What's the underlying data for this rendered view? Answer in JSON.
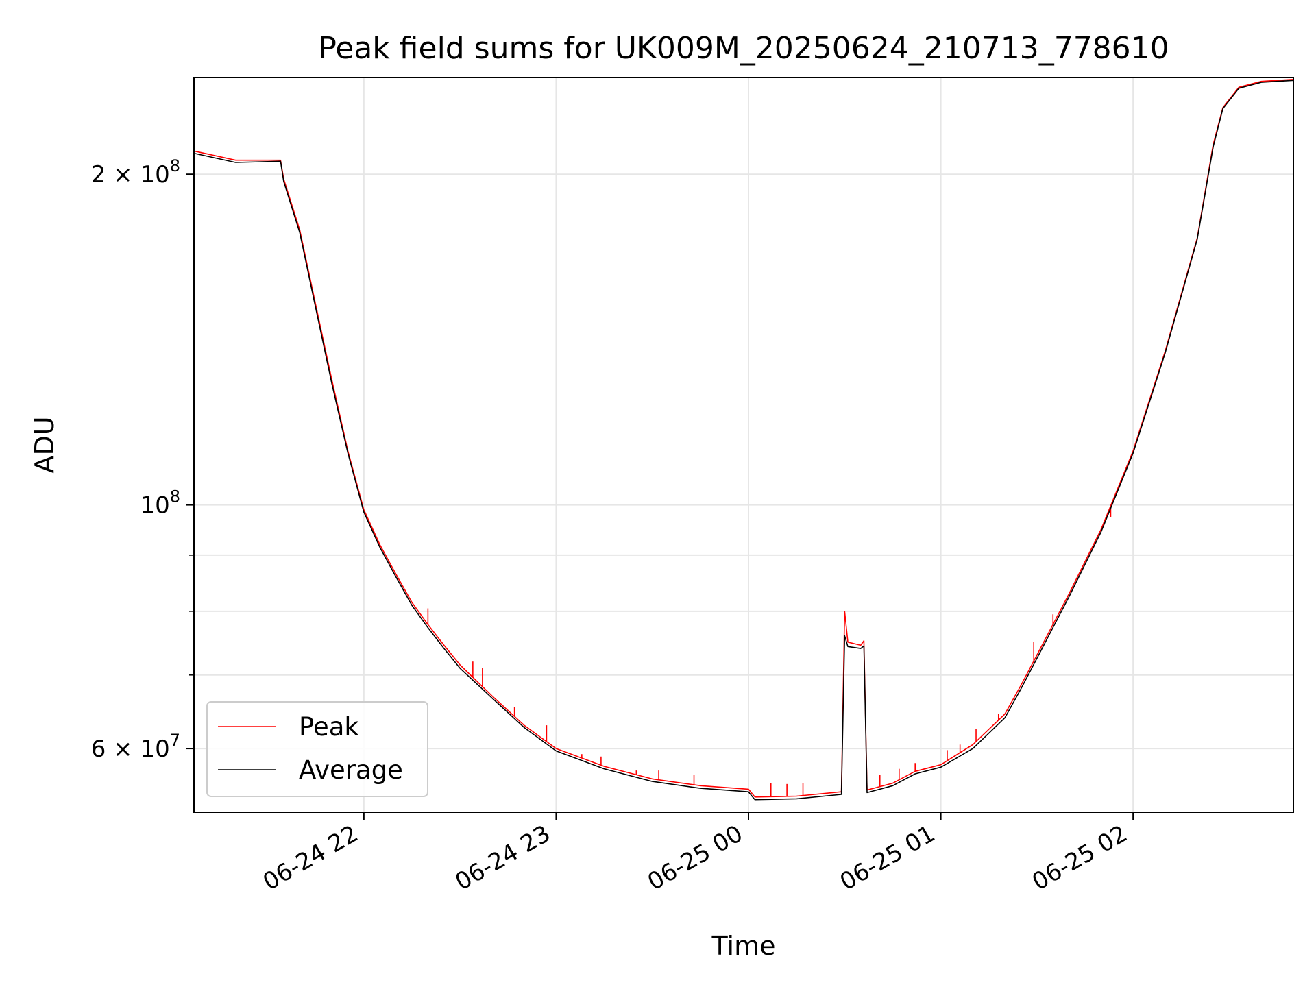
{
  "chart_data": {
    "type": "line",
    "title": "Peak field sums for UK009M_20250624_210713_778610",
    "xlabel": "Time",
    "ylabel": "ADU",
    "yscale": "log",
    "xlim": [
      "2025-06-24 21:07",
      "2025-06-25 02:50"
    ],
    "ylim": [
      52500000,
      245000000
    ],
    "grid": true,
    "legend_position": "lower-left",
    "x_ticks": [
      {
        "t": "2025-06-24 22:00",
        "label": "06-24 22"
      },
      {
        "t": "2025-06-24 23:00",
        "label": "06-24 23"
      },
      {
        "t": "2025-06-25 00:00",
        "label": "06-25 00"
      },
      {
        "t": "2025-06-25 01:00",
        "label": "06-25 01"
      },
      {
        "t": "2025-06-25 02:00",
        "label": "06-25 02"
      }
    ],
    "y_major_ticks": [
      {
        "value": 200000000,
        "label_base": "2 × 10",
        "label_exp": "8"
      },
      {
        "value": 100000000,
        "label_base": "10",
        "label_exp": "8"
      },
      {
        "value": 60000000,
        "label_base": "6 × 10",
        "label_exp": "7"
      }
    ],
    "y_minor_gridlines": [
      70000000,
      80000000,
      90000000
    ],
    "series": [
      {
        "name": "Peak",
        "color": "#ff0000",
        "points": [
          [
            "2025-06-24 21:07",
            210000000
          ],
          [
            "2025-06-24 21:20",
            206000000
          ],
          [
            "2025-06-24 21:34",
            206000000
          ],
          [
            "2025-06-24 21:35",
            198000000
          ],
          [
            "2025-06-24 21:40",
            178000000
          ],
          [
            "2025-06-24 21:45",
            152000000
          ],
          [
            "2025-06-24 21:50",
            130000000
          ],
          [
            "2025-06-24 21:55",
            112000000
          ],
          [
            "2025-06-24 22:00",
            99000000
          ],
          [
            "2025-06-24 22:05",
            92000000
          ],
          [
            "2025-06-24 22:10",
            86500000
          ],
          [
            "2025-06-24 22:15",
            81500000
          ],
          [
            "2025-06-24 22:20",
            77800000
          ],
          [
            "2025-06-24 22:25",
            74500000
          ],
          [
            "2025-06-24 22:30",
            71500000
          ],
          [
            "2025-06-24 22:40",
            67000000
          ],
          [
            "2025-06-24 22:50",
            63000000
          ],
          [
            "2025-06-24 23:00",
            60000000
          ],
          [
            "2025-06-24 23:15",
            57800000
          ],
          [
            "2025-06-24 23:30",
            56300000
          ],
          [
            "2025-06-24 23:45",
            55500000
          ],
          [
            "2025-06-25 00:00",
            55100000
          ],
          [
            "2025-06-25 00:02",
            54200000
          ],
          [
            "2025-06-25 00:15",
            54300000
          ],
          [
            "2025-06-25 00:29",
            54800000
          ],
          [
            "2025-06-25 00:30",
            80000000
          ],
          [
            "2025-06-25 00:31",
            75000000
          ],
          [
            "2025-06-25 00:35",
            74500000
          ],
          [
            "2025-06-25 00:36",
            75200000
          ],
          [
            "2025-06-25 00:37",
            55000000
          ],
          [
            "2025-06-25 00:45",
            55800000
          ],
          [
            "2025-06-25 00:52",
            57200000
          ],
          [
            "2025-06-25 01:00",
            58000000
          ],
          [
            "2025-06-25 01:10",
            60500000
          ],
          [
            "2025-06-25 01:20",
            64500000
          ],
          [
            "2025-06-25 01:25",
            68500000
          ],
          [
            "2025-06-25 01:30",
            73000000
          ],
          [
            "2025-06-25 01:40",
            83000000
          ],
          [
            "2025-06-25 01:50",
            95000000
          ],
          [
            "2025-06-25 02:00",
            112000000
          ],
          [
            "2025-06-25 02:10",
            138000000
          ],
          [
            "2025-06-25 02:20",
            175000000
          ],
          [
            "2025-06-25 02:25",
            213000000
          ],
          [
            "2025-06-25 02:28",
            230000000
          ],
          [
            "2025-06-25 02:33",
            240000000
          ],
          [
            "2025-06-25 02:40",
            243000000
          ],
          [
            "2025-06-25 02:50",
            244000000
          ]
        ],
        "spikes": [
          [
            "2025-06-24 22:20",
            80500000
          ],
          [
            "2025-06-24 22:34",
            72000000
          ],
          [
            "2025-06-24 22:37",
            71000000
          ],
          [
            "2025-06-24 22:47",
            65500000
          ],
          [
            "2025-06-24 22:57",
            63000000
          ],
          [
            "2025-06-24 23:08",
            59300000
          ],
          [
            "2025-06-24 23:14",
            59000000
          ],
          [
            "2025-06-24 23:25",
            57300000
          ],
          [
            "2025-06-24 23:32",
            57300000
          ],
          [
            "2025-06-24 23:43",
            56800000
          ],
          [
            "2025-06-25 00:07",
            55800000
          ],
          [
            "2025-06-25 00:12",
            55700000
          ],
          [
            "2025-06-25 00:17",
            55800000
          ],
          [
            "2025-06-25 00:41",
            56800000
          ],
          [
            "2025-06-25 00:47",
            57500000
          ],
          [
            "2025-06-25 00:52",
            58200000
          ],
          [
            "2025-06-25 01:02",
            59800000
          ],
          [
            "2025-06-25 01:06",
            60500000
          ],
          [
            "2025-06-25 01:11",
            62500000
          ],
          [
            "2025-06-25 01:18",
            64500000
          ],
          [
            "2025-06-25 01:29",
            75000000
          ],
          [
            "2025-06-25 01:35",
            79500000
          ],
          [
            "2025-06-25 01:44",
            87000000
          ],
          [
            "2025-06-25 01:53",
            97500000
          ]
        ]
      },
      {
        "name": "Average",
        "color": "#000000",
        "points": [
          [
            "2025-06-24 21:07",
            209000000
          ],
          [
            "2025-06-24 21:20",
            205000000
          ],
          [
            "2025-06-24 21:34",
            205500000
          ],
          [
            "2025-06-24 21:35",
            197000000
          ],
          [
            "2025-06-24 21:40",
            177000000
          ],
          [
            "2025-06-24 21:45",
            151000000
          ],
          [
            "2025-06-24 21:50",
            129000000
          ],
          [
            "2025-06-24 21:55",
            111500000
          ],
          [
            "2025-06-24 22:00",
            98500000
          ],
          [
            "2025-06-24 22:05",
            91500000
          ],
          [
            "2025-06-24 22:10",
            86000000
          ],
          [
            "2025-06-24 22:15",
            81000000
          ],
          [
            "2025-06-24 22:20",
            77300000
          ],
          [
            "2025-06-24 22:25",
            74000000
          ],
          [
            "2025-06-24 22:30",
            71000000
          ],
          [
            "2025-06-24 22:40",
            66700000
          ],
          [
            "2025-06-24 22:50",
            62700000
          ],
          [
            "2025-06-24 23:00",
            59700000
          ],
          [
            "2025-06-24 23:15",
            57500000
          ],
          [
            "2025-06-24 23:30",
            56000000
          ],
          [
            "2025-06-24 23:45",
            55200000
          ],
          [
            "2025-06-25 00:00",
            54800000
          ],
          [
            "2025-06-25 00:02",
            53900000
          ],
          [
            "2025-06-25 00:15",
            54000000
          ],
          [
            "2025-06-25 00:29",
            54500000
          ],
          [
            "2025-06-25 00:30",
            76000000
          ],
          [
            "2025-06-25 00:31",
            74300000
          ],
          [
            "2025-06-25 00:35",
            74000000
          ],
          [
            "2025-06-25 00:36",
            74400000
          ],
          [
            "2025-06-25 00:37",
            54700000
          ],
          [
            "2025-06-25 00:45",
            55500000
          ],
          [
            "2025-06-25 00:52",
            56900000
          ],
          [
            "2025-06-25 01:00",
            57700000
          ],
          [
            "2025-06-25 01:10",
            60000000
          ],
          [
            "2025-06-25 01:20",
            64000000
          ],
          [
            "2025-06-25 01:25",
            68000000
          ],
          [
            "2025-06-25 01:30",
            72500000
          ],
          [
            "2025-06-25 01:40",
            82500000
          ],
          [
            "2025-06-25 01:50",
            94500000
          ],
          [
            "2025-06-25 02:00",
            111500000
          ],
          [
            "2025-06-25 02:10",
            137500000
          ],
          [
            "2025-06-25 02:20",
            174500000
          ],
          [
            "2025-06-25 02:25",
            212000000
          ],
          [
            "2025-06-25 02:28",
            229500000
          ],
          [
            "2025-06-25 02:33",
            239500000
          ],
          [
            "2025-06-25 02:40",
            242500000
          ],
          [
            "2025-06-25 02:50",
            243500000
          ]
        ]
      }
    ]
  }
}
